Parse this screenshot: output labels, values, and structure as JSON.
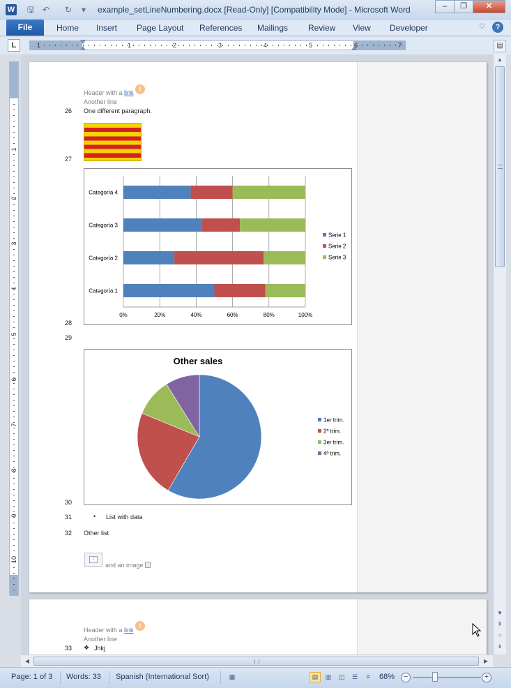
{
  "window": {
    "title": "example_setLineNumbering.docx [Read-Only] [Compatibility Mode]  -  Microsoft Word",
    "minimize_glyph": "–",
    "restore_glyph": "❐",
    "close_glyph": "✕"
  },
  "quick_access": [
    {
      "name": "save-icon",
      "glyph": "🖫"
    },
    {
      "name": "undo-icon",
      "glyph": "↶"
    },
    {
      "name": "redo-icon",
      "glyph": "↻"
    },
    {
      "name": "customize-icon",
      "glyph": "▾"
    }
  ],
  "ribbon": {
    "file_label": "File",
    "tabs": [
      "Home",
      "Insert",
      "Page Layout",
      "References",
      "Mailings",
      "Review",
      "View",
      "Developer"
    ],
    "help_glyph": "?",
    "minimize_glyph": "♡"
  },
  "ruler": {
    "h_numbers": [
      "1",
      "1",
      "2",
      "3",
      "4",
      "5",
      "6",
      "7"
    ],
    "v_numbers": [
      "1",
      "2",
      "3",
      "4",
      "5",
      "6",
      "7",
      "8",
      "9",
      "10"
    ],
    "tab_selector_glyph": "L"
  },
  "page1": {
    "header_prefix": "Header with a ",
    "header_link": "link",
    "header_line2": "Another line",
    "badge_glyph": "!",
    "lines": [
      {
        "num": "26",
        "text": "One different paragraph."
      },
      {
        "num": "27",
        "text": ""
      },
      {
        "num": "28",
        "text": ""
      },
      {
        "num": "29",
        "text": ""
      },
      {
        "num": "30",
        "text": ""
      },
      {
        "num": "31",
        "text": "List with data"
      },
      {
        "num": "32",
        "text": "Other list"
      }
    ],
    "bullet_glyph": "•",
    "image_caption": "and an image",
    "image_placeholder_text": "1"
  },
  "page2": {
    "header_prefix": "Header with a ",
    "header_link": "link",
    "header_line2": "Another line",
    "badge_glyph": "!",
    "line_num": "33",
    "bullet_glyph": "❖",
    "line_text": "Jhkj"
  },
  "chart_data": [
    {
      "type": "bar",
      "orientation": "horizontal",
      "stacked": "percent",
      "categories": [
        "Categoría 1",
        "Categoría 2",
        "Categoría 3",
        "Categoría 4"
      ],
      "series": [
        {
          "name": "Serie 1",
          "color": "#4f81bd",
          "values": [
            50,
            28,
            43,
            37
          ]
        },
        {
          "name": "Serie 2",
          "color": "#c0504d",
          "values": [
            28,
            49,
            21,
            23
          ]
        },
        {
          "name": "Serie 3",
          "color": "#9bbb59",
          "values": [
            22,
            23,
            36,
            40
          ]
        }
      ],
      "x_ticks": [
        "0%",
        "20%",
        "40%",
        "60%",
        "80%",
        "100%"
      ],
      "xlim": [
        0,
        100
      ],
      "grid": true,
      "legend": "right"
    },
    {
      "type": "pie",
      "title": "Other sales",
      "slices": [
        {
          "label": "1er trim.",
          "value": 59,
          "color": "#4f81bd"
        },
        {
          "label": "2º trim.",
          "value": 23,
          "color": "#c0504d"
        },
        {
          "label": "3er trim.",
          "value": 10,
          "color": "#9bbb59"
        },
        {
          "label": "4º trim.",
          "value": 9,
          "color": "#8064a2"
        }
      ],
      "legend": "right"
    }
  ],
  "status": {
    "page": "Page: 1 of 3",
    "words": "Words: 33",
    "language": "Spanish (International Sort)",
    "zoom": "68%",
    "zoom_level": 68,
    "zoom_minus": "−",
    "zoom_plus": "+"
  },
  "scrollbar": {
    "up": "▲",
    "down": "▼",
    "prev_page": "⇞",
    "select_browse": "○",
    "next_page": "⇟",
    "left": "◀",
    "right": "▶"
  }
}
